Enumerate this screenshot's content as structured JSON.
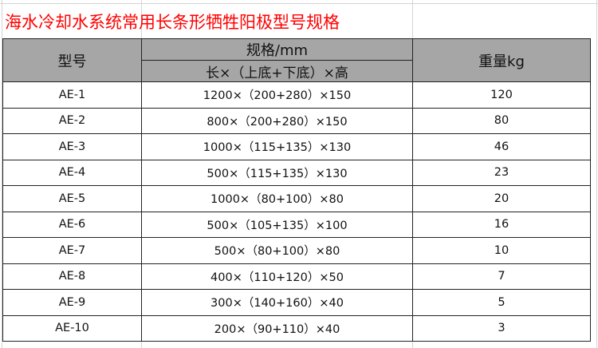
{
  "title": "海水冷却水系统常用长条形牺牲阳极型号规格",
  "colors": {
    "title": "#ff0000",
    "header_bg": "#a6a6a6"
  },
  "headers": {
    "model": "型号",
    "spec": "规格/mm",
    "spec_sub": "长×（上底+下底）×高",
    "weight": "重量kg"
  },
  "rows": [
    {
      "model": "AE-1",
      "spec": "1200×（200+280）×150",
      "weight": "120"
    },
    {
      "model": "AE-2",
      "spec": "800×（200+280）×150",
      "weight": "80"
    },
    {
      "model": "AE-3",
      "spec": "1000×（115+135）×130",
      "weight": "46"
    },
    {
      "model": "AE-4",
      "spec": "500×（115+135）×130",
      "weight": "23"
    },
    {
      "model": "AE-5",
      "spec": "1000×（80+100）×80",
      "weight": "20"
    },
    {
      "model": "AE-6",
      "spec": "500×（105+135）×100",
      "weight": "16"
    },
    {
      "model": "AE-7",
      "spec": "500×（80+100）×80",
      "weight": "10"
    },
    {
      "model": "AE-8",
      "spec": "400×（110+120）×50",
      "weight": "7"
    },
    {
      "model": "AE-9",
      "spec": "300×（140+160）×40",
      "weight": "5"
    },
    {
      "model": "AE-10",
      "spec": "200×（90+110）×40",
      "weight": "3"
    }
  ]
}
